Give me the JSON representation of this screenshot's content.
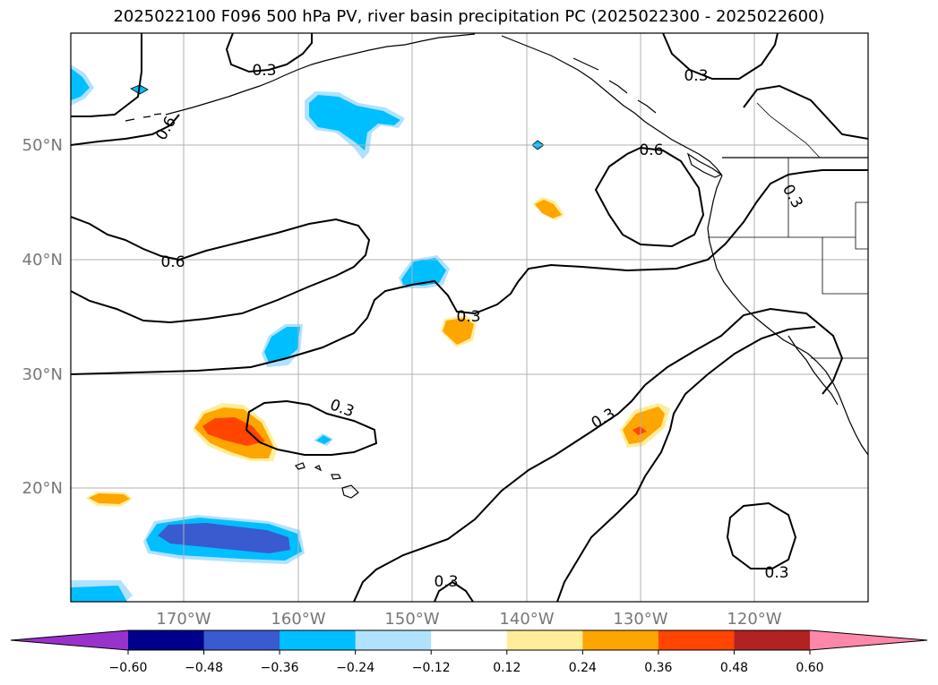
{
  "title": "2025022100 F096 500 hPa PV, river basin precipitation PC (2025022300 - 2025022600)",
  "lat_labels": [
    "50°N",
    "40°N",
    "30°N",
    "20°N"
  ],
  "lon_labels": [
    "170°W",
    "160°W",
    "150°W",
    "140°W",
    "130°W",
    "120°W"
  ],
  "contour_labels": [
    "0.3",
    "0.3",
    "0.6",
    "0.6",
    "0.6",
    "0.3",
    "0.3",
    "0.3",
    "0.3",
    "0.3",
    "0.3"
  ],
  "colorbar": {
    "colors": [
      "#9932cc",
      "#00008b",
      "#3a5ad0",
      "#00bfff",
      "#b0e2ff",
      "#ffffff",
      "#ffee99",
      "#ffa500",
      "#ff4500",
      "#b22222",
      "#ff88aa"
    ],
    "ticks": [
      "−0.60",
      "−0.48",
      "−0.36",
      "−0.24",
      "−0.12",
      "0.12",
      "0.24",
      "0.36",
      "0.48",
      "0.60"
    ]
  },
  "colors": {
    "neg_strong": "#3a5ad0",
    "neg_mid": "#00bfff",
    "neg_weak": "#b0e2ff",
    "pos_weak": "#ffee99",
    "pos_mid": "#ffa500",
    "pos_strong": "#ff4500"
  }
}
